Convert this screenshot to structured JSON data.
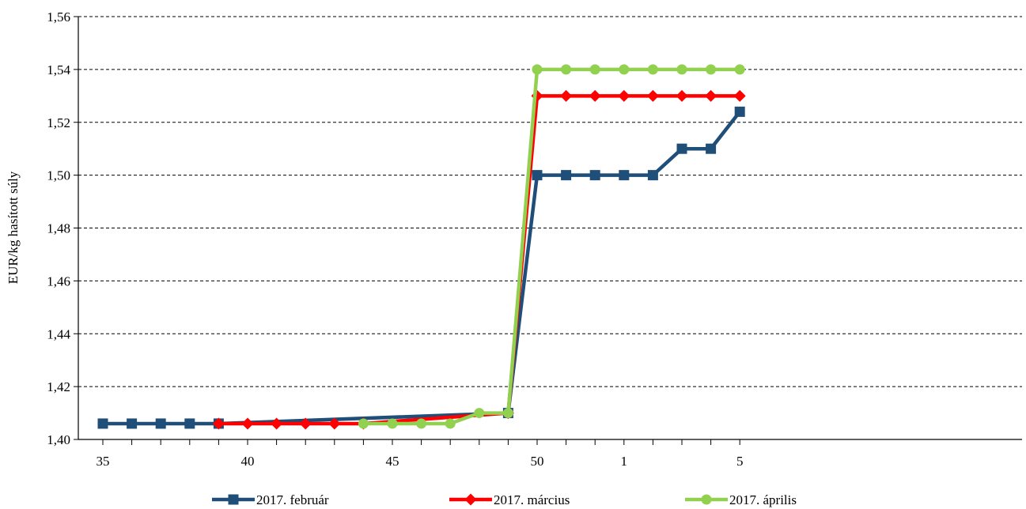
{
  "chart_data": {
    "type": "line",
    "title": "",
    "xlabel": "",
    "ylabel": "EUR/kg hasított súly",
    "categories": [
      "35",
      "36",
      "37",
      "38",
      "39",
      "40",
      "41",
      "42",
      "43",
      "44",
      "45",
      "46",
      "47",
      "48",
      "49",
      "50",
      "51",
      "52",
      "1",
      "2",
      "3",
      "4",
      "5"
    ],
    "x_tick_labels": [
      "35",
      "",
      "",
      "",
      "",
      "40",
      "",
      "",
      "",
      "",
      "45",
      "",
      "",
      "",
      "",
      "50",
      "",
      "",
      "1",
      "",
      "",
      "",
      "5"
    ],
    "ylim": [
      1.4,
      1.56
    ],
    "y_ticks": [
      1.4,
      1.42,
      1.44,
      1.46,
      1.48,
      1.5,
      1.52,
      1.54,
      1.56
    ],
    "y_tick_labels": [
      "1,40",
      "1,42",
      "1,44",
      "1,46",
      "1,48",
      "1,50",
      "1,52",
      "1,54",
      "1,56"
    ],
    "grid": "horizontal dashed",
    "legend_position": "bottom",
    "series": [
      {
        "name": "2017. február",
        "color": "#1F4E79",
        "marker": "square",
        "values": [
          1.406,
          1.406,
          1.406,
          1.406,
          1.406,
          null,
          null,
          null,
          null,
          null,
          null,
          null,
          null,
          null,
          1.41,
          1.5,
          1.5,
          1.5,
          1.5,
          1.5,
          1.51,
          1.51,
          1.524
        ]
      },
      {
        "name": "2017. március",
        "color": "#FF0000",
        "marker": "diamond",
        "values": [
          null,
          null,
          null,
          null,
          1.406,
          1.406,
          1.406,
          1.406,
          1.406,
          1.406,
          null,
          null,
          null,
          null,
          1.41,
          1.53,
          1.53,
          1.53,
          1.53,
          1.53,
          1.53,
          1.53,
          1.53
        ]
      },
      {
        "name": "2017. április",
        "color": "#92D050",
        "marker": "circle",
        "values": [
          null,
          null,
          null,
          null,
          null,
          null,
          null,
          null,
          null,
          1.406,
          1.406,
          1.406,
          1.406,
          1.41,
          1.41,
          1.54,
          1.54,
          1.54,
          1.54,
          1.54,
          1.54,
          1.54,
          1.54
        ]
      }
    ]
  }
}
